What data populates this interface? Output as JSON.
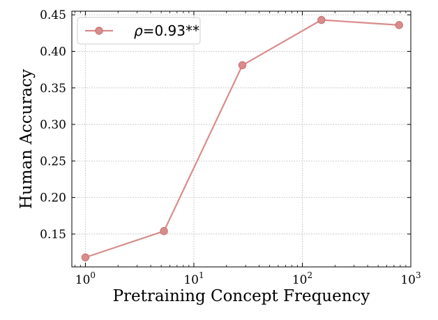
{
  "chart_data": {
    "type": "line",
    "xlabel": "Pretraining Concept Frequency",
    "ylabel": "Human Accuracy",
    "x_scale": "log",
    "xlim": [
      0.75,
      1000
    ],
    "ylim": [
      0.105,
      0.455
    ],
    "x_ticks": [
      {
        "value": 1,
        "base": "10",
        "exp": "0"
      },
      {
        "value": 10,
        "base": "10",
        "exp": "1"
      },
      {
        "value": 100,
        "base": "10",
        "exp": "2"
      },
      {
        "value": 1000,
        "base": "10",
        "exp": "3"
      }
    ],
    "y_ticks": [
      0.15,
      0.2,
      0.25,
      0.3,
      0.35,
      0.4,
      0.45
    ],
    "y_tick_labels": [
      "0.15",
      "0.20",
      "0.25",
      "0.30",
      "0.35",
      "0.40",
      "0.45"
    ],
    "grid": true,
    "legend_position": "top-left",
    "series": [
      {
        "name": "ρ=0.93**",
        "legend_symbol": "ρ",
        "legend_rest": "=0.93**",
        "color": "#d98c8c",
        "x": [
          1,
          5.3,
          28,
          150,
          780
        ],
        "y": [
          0.118,
          0.154,
          0.381,
          0.443,
          0.436
        ]
      }
    ]
  }
}
